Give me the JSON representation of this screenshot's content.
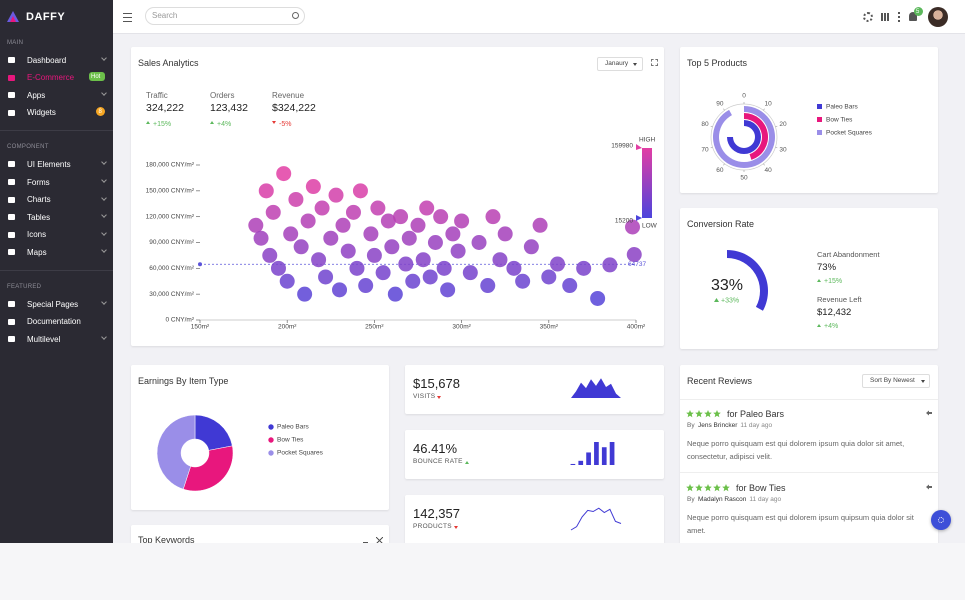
{
  "brand": "DAFFY",
  "search_placeholder": "Search",
  "notification_count": "5",
  "sidebar": [
    {
      "title": "MAIN",
      "items": [
        {
          "label": "Dashboard",
          "submenu": true
        },
        {
          "label": "E-Commerce",
          "badge": "Hot",
          "active": true
        },
        {
          "label": "Apps",
          "submenu": true
        },
        {
          "label": "Widgets",
          "badge": "8"
        }
      ]
    },
    {
      "title": "COMPONENT",
      "items": [
        {
          "label": "UI Elements",
          "submenu": true
        },
        {
          "label": "Forms",
          "submenu": true
        },
        {
          "label": "Charts",
          "submenu": true
        },
        {
          "label": "Tables",
          "submenu": true
        },
        {
          "label": "Icons",
          "submenu": true
        },
        {
          "label": "Maps",
          "submenu": true
        }
      ]
    },
    {
      "title": "FEATURED",
      "items": [
        {
          "label": "Special Pages",
          "submenu": true
        },
        {
          "label": "Documentation"
        },
        {
          "label": "Multilevel",
          "submenu": true
        }
      ]
    }
  ],
  "period": "Janaury",
  "sales_stats": [
    {
      "label": "Traffic",
      "value": "324,222",
      "change": "+15%"
    },
    {
      "label": "Orders",
      "value": "123,432",
      "change": "+4%"
    },
    {
      "label": "Revenue",
      "value": "$324,222",
      "change": "-5%"
    }
  ],
  "chart_data": [
    {
      "type": "scatter",
      "title": "Sales Analytics",
      "series": [
        {
          "x": [
            182,
            185,
            188,
            190,
            192,
            195,
            198,
            200,
            202,
            205,
            208,
            210,
            212,
            215,
            218,
            220,
            222,
            225,
            228,
            230,
            232,
            235,
            238,
            240,
            242,
            245,
            248,
            250,
            252,
            255,
            258,
            260,
            262,
            265,
            268,
            270,
            272,
            275,
            278,
            280,
            282,
            285,
            288,
            290,
            292,
            295,
            298,
            300,
            305,
            310,
            315,
            318,
            322,
            325,
            330,
            335,
            340,
            345,
            350,
            355,
            362,
            370,
            378,
            385,
            398,
            399
          ],
          "values": [
            110000,
            95000,
            150000,
            75000,
            125000,
            60000,
            170000,
            45000,
            100000,
            140000,
            85000,
            30000,
            115000,
            155000,
            70000,
            130000,
            50000,
            95000,
            145000,
            35000,
            110000,
            80000,
            125000,
            60000,
            150000,
            40000,
            100000,
            75000,
            130000,
            55000,
            115000,
            85000,
            30000,
            120000,
            65000,
            95000,
            45000,
            110000,
            70000,
            130000,
            50000,
            90000,
            120000,
            60000,
            35000,
            100000,
            80000,
            115000,
            55000,
            90000,
            40000,
            120000,
            70000,
            100000,
            60000,
            45000,
            85000,
            110000,
            50000,
            65000,
            40000,
            60000,
            25000,
            64000,
            108000,
            76000
          ]
        }
      ],
      "xlim": [
        150,
        400
      ],
      "xticks": [
        {
          "value": 150,
          "label": "150m²"
        },
        {
          "value": 200,
          "label": "200m²"
        },
        {
          "value": 250,
          "label": "250m²"
        },
        {
          "value": 300,
          "label": "300m²"
        },
        {
          "value": 350,
          "label": "350m²"
        },
        {
          "value": 400,
          "label": "400m²"
        }
      ],
      "ylim": [
        0,
        180000
      ],
      "yticks": [
        {
          "value": 0,
          "label": "0 CNY/m²"
        },
        {
          "value": 30000,
          "label": "30,000 CNY/m²"
        },
        {
          "value": 60000,
          "label": "60,000 CNY/m²"
        },
        {
          "value": 90000,
          "label": "90,000 CNY/m²"
        },
        {
          "value": 120000,
          "label": "120,000 CNY/m²"
        },
        {
          "value": 150000,
          "label": "150,000 CNY/m²"
        },
        {
          "value": 180000,
          "label": "180,000 CNY/m²"
        }
      ],
      "visual_map": {
        "min": 15200,
        "max": 159980,
        "high_label": "HIGH",
        "low_label": "LOW",
        "colors": [
          "#4c44dc",
          "#e23ea4"
        ]
      },
      "mark_line": {
        "value": 64737,
        "color": "#5b53d9"
      }
    },
    {
      "type": "polar-bar",
      "title": "Top 5 Products",
      "series": [
        {
          "name": "Paleo Bars",
          "color": "#4039d4",
          "value": 75
        },
        {
          "name": "Bow Ties",
          "color": "#e8177d",
          "value": 45
        },
        {
          "name": "Pocket Squares",
          "color": "#9a8ee8",
          "value": 92
        }
      ],
      "alim": [
        0,
        100
      ],
      "aticks": [
        0,
        10,
        20,
        30,
        40,
        50,
        60,
        70,
        80,
        90
      ]
    },
    {
      "type": "gauge",
      "title": "Conversion Rate",
      "values": [
        33
      ],
      "value_labels": [
        "33%"
      ],
      "change": "+33%",
      "ylim": [
        0,
        100
      ],
      "color": "#4039d4"
    },
    {
      "type": "pie",
      "title": "Earnings By Item Type",
      "categories": [
        "Paleo Bars",
        "Bow Ties",
        "Pocket Squares"
      ],
      "values": [
        22,
        33,
        45
      ],
      "colors": [
        "#4039d4",
        "#e8177d",
        "#9a8ee8"
      ]
    },
    {
      "type": "area",
      "values": [
        0,
        6,
        14,
        9,
        17,
        11,
        18,
        10,
        13,
        4,
        0
      ],
      "ylim": [
        0,
        20
      ],
      "color": "#4039d4"
    },
    {
      "type": "bar",
      "values": [
        1,
        4,
        12,
        22,
        17,
        22
      ],
      "ylim": [
        0,
        22
      ],
      "color": "#4039d4"
    },
    {
      "type": "line",
      "values": [
        0,
        3,
        12,
        18,
        17,
        20,
        16,
        19,
        8,
        6
      ],
      "ylim": [
        0,
        22
      ],
      "color": "#4039d4"
    }
  ],
  "conversion_stats": [
    {
      "label": "Cart Abandonment",
      "value": "73%",
      "change": "+15%"
    },
    {
      "label": "Revenue Left",
      "value": "$12,432",
      "change": "+4%"
    }
  ],
  "mini_stats": [
    {
      "value": "$15,678",
      "label": "VISITS",
      "trend": "down"
    },
    {
      "value": "46.41%",
      "label": "BOUNCE RATE",
      "trend": "up"
    },
    {
      "value": "142,357",
      "label": "PRODUCTS",
      "trend": "down"
    }
  ],
  "reviews": {
    "title": "Recent Reviews",
    "sort": "Sort By Newest",
    "by": "By",
    "items": [
      {
        "rating": 4,
        "title": "for Paleo Bars",
        "author": "Jens Brincker",
        "time": "11 day ago",
        "text": "Neque porro quisquam est qui dolorem ipsum quia dolor sit amet, consectetur, adipisci velit."
      },
      {
        "rating": 5,
        "title": "for Bow Ties",
        "author": "Madalyn Rascon",
        "time": "11 day ago",
        "text": "Neque porro quisquam est qui dolorem ipsum quipsum quia dolor sit amet."
      }
    ]
  },
  "keywords": {
    "title": "Top Keywords"
  }
}
